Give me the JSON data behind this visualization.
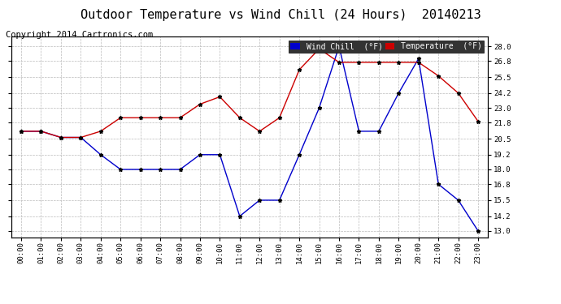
{
  "title": "Outdoor Temperature vs Wind Chill (24 Hours)  20140213",
  "copyright": "Copyright 2014 Cartronics.com",
  "hours": [
    "00:00",
    "01:00",
    "02:00",
    "03:00",
    "04:00",
    "05:00",
    "06:00",
    "07:00",
    "08:00",
    "09:00",
    "10:00",
    "11:00",
    "12:00",
    "13:00",
    "14:00",
    "15:00",
    "16:00",
    "17:00",
    "18:00",
    "19:00",
    "20:00",
    "21:00",
    "22:00",
    "23:00"
  ],
  "temperature": [
    21.1,
    21.1,
    20.6,
    20.6,
    21.1,
    22.2,
    22.2,
    22.2,
    22.2,
    23.3,
    23.9,
    22.2,
    21.1,
    22.2,
    26.1,
    27.8,
    26.7,
    26.7,
    26.7,
    26.7,
    26.7,
    25.6,
    24.2,
    21.9
  ],
  "wind_chill": [
    21.1,
    21.1,
    20.6,
    20.6,
    19.2,
    18.0,
    18.0,
    18.0,
    18.0,
    19.2,
    19.2,
    14.2,
    15.5,
    15.5,
    19.2,
    23.0,
    28.0,
    21.1,
    21.1,
    24.2,
    27.0,
    16.8,
    15.5,
    13.0
  ],
  "ylim_min": 12.5,
  "ylim_max": 28.8,
  "yticks": [
    13.0,
    14.2,
    15.5,
    16.8,
    18.0,
    19.2,
    20.5,
    21.8,
    23.0,
    24.2,
    25.5,
    26.8,
    28.0
  ],
  "temp_color": "#cc0000",
  "wind_color": "#0000cc",
  "bg_color": "#ffffff",
  "grid_color": "#bbbbbb",
  "legend_wind_bg": "#0000cc",
  "legend_temp_bg": "#cc0000",
  "title_fontsize": 11,
  "copyright_fontsize": 7.5
}
